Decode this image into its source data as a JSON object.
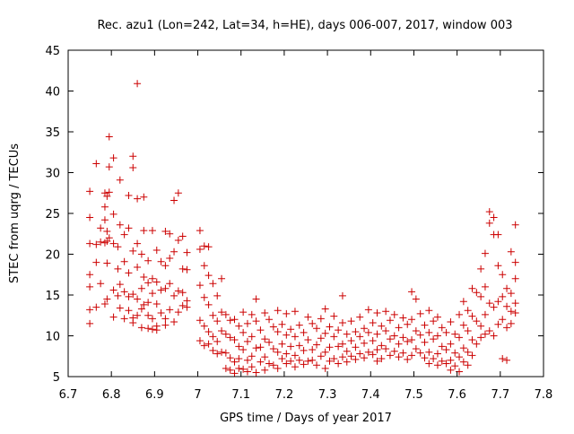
{
  "chart_data": {
    "type": "scatter",
    "title": "Rec. azu1 (Lon=242, Lat=34, h=HE), days 006-007, 2017, window 003",
    "xlabel": "GPS time / Days of year 2017",
    "ylabel": "STEC from uqrg / TECUs",
    "xlim": [
      6.7,
      7.8
    ],
    "ylim": [
      5,
      45
    ],
    "xticks": [
      "6.7",
      "6.8",
      "6.9",
      "7",
      "7.1",
      "7.2",
      "7.3",
      "7.4",
      "7.5",
      "7.6",
      "7.7",
      "7.8"
    ],
    "yticks": [
      "5",
      "10",
      "15",
      "20",
      "25",
      "30",
      "35",
      "40",
      "45"
    ],
    "grid": false,
    "legend": "none",
    "marker": "+",
    "color": "#cc0000",
    "points": [
      [
        6.75,
        27.7
      ],
      [
        6.75,
        24.5
      ],
      [
        6.75,
        21.3
      ],
      [
        6.75,
        17.5
      ],
      [
        6.75,
        16.0
      ],
      [
        6.75,
        13.2
      ],
      [
        6.75,
        11.5
      ],
      [
        6.765,
        31.1
      ],
      [
        6.765,
        21.2
      ],
      [
        6.765,
        19.0
      ],
      [
        6.765,
        13.5
      ],
      [
        6.775,
        23.2
      ],
      [
        6.775,
        21.5
      ],
      [
        6.775,
        16.4
      ],
      [
        6.785,
        27.5
      ],
      [
        6.785,
        25.8
      ],
      [
        6.785,
        24.2
      ],
      [
        6.785,
        21.4
      ],
      [
        6.785,
        13.9
      ],
      [
        6.79,
        27.1
      ],
      [
        6.79,
        22.8
      ],
      [
        6.79,
        21.6
      ],
      [
        6.79,
        18.9
      ],
      [
        6.79,
        14.5
      ],
      [
        6.795,
        34.4
      ],
      [
        6.795,
        30.7
      ],
      [
        6.795,
        27.6
      ],
      [
        6.795,
        22.0
      ],
      [
        6.805,
        31.8
      ],
      [
        6.805,
        24.9
      ],
      [
        6.805,
        21.3
      ],
      [
        6.805,
        15.6
      ],
      [
        6.805,
        12.3
      ],
      [
        6.815,
        20.9
      ],
      [
        6.815,
        18.2
      ],
      [
        6.815,
        14.9
      ],
      [
        6.82,
        29.1
      ],
      [
        6.82,
        23.6
      ],
      [
        6.82,
        16.3
      ],
      [
        6.82,
        13.4
      ],
      [
        6.83,
        22.4
      ],
      [
        6.83,
        19.1
      ],
      [
        6.83,
        15.4
      ],
      [
        6.83,
        12.1
      ],
      [
        6.84,
        27.2
      ],
      [
        6.84,
        23.2
      ],
      [
        6.84,
        17.7
      ],
      [
        6.84,
        14.8
      ],
      [
        6.84,
        13.1
      ],
      [
        6.85,
        32.0
      ],
      [
        6.85,
        30.6
      ],
      [
        6.85,
        20.4
      ],
      [
        6.85,
        15.1
      ],
      [
        6.85,
        12.2
      ],
      [
        6.85,
        11.6
      ],
      [
        6.86,
        40.9
      ],
      [
        6.86,
        26.8
      ],
      [
        6.86,
        21.3
      ],
      [
        6.86,
        18.4
      ],
      [
        6.86,
        14.5
      ],
      [
        6.86,
        12.5
      ],
      [
        6.87,
        20.0
      ],
      [
        6.87,
        15.8
      ],
      [
        6.87,
        13.3
      ],
      [
        6.87,
        11.0
      ],
      [
        6.875,
        27.0
      ],
      [
        6.875,
        22.9
      ],
      [
        6.875,
        17.2
      ],
      [
        6.875,
        13.8
      ],
      [
        6.885,
        19.2
      ],
      [
        6.885,
        16.5
      ],
      [
        6.885,
        14.1
      ],
      [
        6.885,
        12.5
      ],
      [
        6.885,
        10.9
      ],
      [
        6.895,
        22.9
      ],
      [
        6.895,
        17.0
      ],
      [
        6.895,
        15.2
      ],
      [
        6.895,
        12.1
      ],
      [
        6.895,
        10.8
      ],
      [
        6.905,
        20.5
      ],
      [
        6.905,
        16.6
      ],
      [
        6.905,
        13.9
      ],
      [
        6.905,
        11.2
      ],
      [
        6.905,
        10.7
      ],
      [
        6.915,
        19.1
      ],
      [
        6.915,
        15.6
      ],
      [
        6.915,
        12.8
      ],
      [
        6.925,
        22.8
      ],
      [
        6.925,
        18.6
      ],
      [
        6.925,
        15.8
      ],
      [
        6.925,
        12.1
      ],
      [
        6.925,
        11.3
      ],
      [
        6.935,
        22.5
      ],
      [
        6.935,
        19.5
      ],
      [
        6.935,
        16.4
      ],
      [
        6.935,
        13.2
      ],
      [
        6.945,
        26.6
      ],
      [
        6.945,
        20.3
      ],
      [
        6.945,
        14.9
      ],
      [
        6.945,
        11.7
      ],
      [
        6.955,
        27.5
      ],
      [
        6.955,
        21.7
      ],
      [
        6.955,
        15.5
      ],
      [
        6.955,
        12.9
      ],
      [
        6.965,
        22.2
      ],
      [
        6.965,
        18.2
      ],
      [
        6.965,
        15.3
      ],
      [
        6.965,
        13.7
      ],
      [
        6.975,
        20.2
      ],
      [
        6.975,
        18.1
      ],
      [
        6.975,
        14.3
      ],
      [
        6.975,
        13.5
      ],
      [
        7.005,
        22.9
      ],
      [
        7.005,
        20.6
      ],
      [
        7.005,
        16.2
      ],
      [
        7.005,
        11.9
      ],
      [
        7.005,
        9.4
      ],
      [
        7.015,
        21.0
      ],
      [
        7.015,
        18.6
      ],
      [
        7.015,
        14.7
      ],
      [
        7.015,
        11.2
      ],
      [
        7.015,
        8.8
      ],
      [
        7.025,
        20.9
      ],
      [
        7.025,
        17.4
      ],
      [
        7.025,
        13.8
      ],
      [
        7.025,
        10.5
      ],
      [
        7.025,
        9.0
      ],
      [
        7.035,
        16.4
      ],
      [
        7.035,
        12.5
      ],
      [
        7.035,
        9.9
      ],
      [
        7.035,
        8.2
      ],
      [
        7.045,
        14.9
      ],
      [
        7.045,
        11.8
      ],
      [
        7.045,
        9.3
      ],
      [
        7.045,
        7.8
      ],
      [
        7.055,
        17.0
      ],
      [
        7.055,
        12.9
      ],
      [
        7.055,
        10.6
      ],
      [
        7.055,
        8.0
      ],
      [
        7.065,
        12.6
      ],
      [
        7.065,
        10.2
      ],
      [
        7.065,
        7.9
      ],
      [
        7.065,
        6.0
      ],
      [
        7.075,
        11.9
      ],
      [
        7.075,
        9.8
      ],
      [
        7.075,
        7.3
      ],
      [
        7.075,
        5.8
      ],
      [
        7.085,
        12.0
      ],
      [
        7.085,
        9.5
      ],
      [
        7.085,
        6.8
      ],
      [
        7.085,
        5.4
      ],
      [
        7.095,
        11.2
      ],
      [
        7.095,
        8.7
      ],
      [
        7.095,
        7.2
      ],
      [
        7.095,
        6.0
      ],
      [
        7.105,
        12.9
      ],
      [
        7.105,
        10.4
      ],
      [
        7.105,
        8.3
      ],
      [
        7.105,
        5.9
      ],
      [
        7.115,
        11.5
      ],
      [
        7.115,
        9.3
      ],
      [
        7.115,
        7.0
      ],
      [
        7.115,
        5.6
      ],
      [
        7.125,
        12.6
      ],
      [
        7.125,
        9.9
      ],
      [
        7.125,
        7.5
      ],
      [
        7.125,
        6.2
      ],
      [
        7.135,
        14.5
      ],
      [
        7.135,
        11.8
      ],
      [
        7.135,
        8.5
      ],
      [
        7.135,
        5.5
      ],
      [
        7.145,
        10.7
      ],
      [
        7.145,
        8.6
      ],
      [
        7.145,
        6.8
      ],
      [
        7.155,
        12.8
      ],
      [
        7.155,
        9.6
      ],
      [
        7.155,
        7.4
      ],
      [
        7.155,
        5.8
      ],
      [
        7.165,
        12.0
      ],
      [
        7.165,
        9.2
      ],
      [
        7.165,
        6.6
      ],
      [
        7.175,
        11.1
      ],
      [
        7.175,
        8.4
      ],
      [
        7.175,
        6.4
      ],
      [
        7.185,
        13.1
      ],
      [
        7.185,
        10.5
      ],
      [
        7.185,
        8.0
      ],
      [
        7.185,
        6.0
      ],
      [
        7.195,
        11.4
      ],
      [
        7.195,
        9.0
      ],
      [
        7.195,
        7.2
      ],
      [
        7.205,
        12.7
      ],
      [
        7.205,
        10.1
      ],
      [
        7.205,
        7.8
      ],
      [
        7.205,
        6.6
      ],
      [
        7.215,
        10.8
      ],
      [
        7.215,
        8.7
      ],
      [
        7.215,
        6.9
      ],
      [
        7.225,
        13.0
      ],
      [
        7.225,
        9.9
      ],
      [
        7.225,
        7.6
      ],
      [
        7.225,
        6.2
      ],
      [
        7.235,
        11.3
      ],
      [
        7.235,
        8.8
      ],
      [
        7.235,
        7.0
      ],
      [
        7.245,
        10.4
      ],
      [
        7.245,
        8.2
      ],
      [
        7.245,
        6.5
      ],
      [
        7.255,
        12.3
      ],
      [
        7.255,
        9.5
      ],
      [
        7.255,
        6.9
      ],
      [
        7.265,
        11.5
      ],
      [
        7.265,
        8.3
      ],
      [
        7.265,
        7.0
      ],
      [
        7.275,
        10.9
      ],
      [
        7.275,
        8.9
      ],
      [
        7.275,
        6.4
      ],
      [
        7.285,
        12.1
      ],
      [
        7.285,
        9.7
      ],
      [
        7.285,
        7.5
      ],
      [
        7.295,
        13.3
      ],
      [
        7.295,
        10.3
      ],
      [
        7.295,
        8.0
      ],
      [
        7.295,
        6.0
      ],
      [
        7.305,
        11.1
      ],
      [
        7.305,
        8.6
      ],
      [
        7.305,
        6.9
      ],
      [
        7.315,
        12.4
      ],
      [
        7.315,
        9.9
      ],
      [
        7.315,
        7.2
      ],
      [
        7.325,
        10.7
      ],
      [
        7.325,
        8.7
      ],
      [
        7.325,
        6.6
      ],
      [
        7.335,
        14.9
      ],
      [
        7.335,
        11.6
      ],
      [
        7.335,
        9.0
      ],
      [
        7.335,
        7.4
      ],
      [
        7.345,
        10.2
      ],
      [
        7.345,
        8.1
      ],
      [
        7.345,
        6.8
      ],
      [
        7.355,
        11.8
      ],
      [
        7.355,
        9.4
      ],
      [
        7.355,
        7.5
      ],
      [
        7.365,
        10.5
      ],
      [
        7.365,
        8.6
      ],
      [
        7.365,
        7.1
      ],
      [
        7.375,
        12.3
      ],
      [
        7.375,
        9.9
      ],
      [
        7.375,
        7.8
      ],
      [
        7.385,
        10.9
      ],
      [
        7.385,
        9.1
      ],
      [
        7.385,
        7.3
      ],
      [
        7.395,
        13.2
      ],
      [
        7.395,
        10.4
      ],
      [
        7.395,
        8.0
      ],
      [
        7.405,
        11.6
      ],
      [
        7.405,
        9.4
      ],
      [
        7.405,
        7.7
      ],
      [
        7.415,
        12.8
      ],
      [
        7.415,
        10.2
      ],
      [
        7.415,
        8.3
      ],
      [
        7.415,
        6.9
      ],
      [
        7.425,
        11.2
      ],
      [
        7.425,
        8.8
      ],
      [
        7.425,
        7.2
      ],
      [
        7.435,
        13.0
      ],
      [
        7.435,
        10.6
      ],
      [
        7.435,
        8.4
      ],
      [
        7.445,
        11.9
      ],
      [
        7.445,
        9.6
      ],
      [
        7.445,
        7.6
      ],
      [
        7.455,
        12.6
      ],
      [
        7.455,
        10.0
      ],
      [
        7.455,
        8.1
      ],
      [
        7.465,
        11.0
      ],
      [
        7.465,
        9.0
      ],
      [
        7.465,
        7.4
      ],
      [
        7.475,
        12.2
      ],
      [
        7.475,
        9.8
      ],
      [
        7.475,
        7.9
      ],
      [
        7.485,
        11.4
      ],
      [
        7.485,
        9.3
      ],
      [
        7.485,
        7.1
      ],
      [
        7.495,
        15.4
      ],
      [
        7.495,
        12.0
      ],
      [
        7.495,
        9.5
      ],
      [
        7.495,
        7.6
      ],
      [
        7.505,
        14.5
      ],
      [
        7.505,
        10.6
      ],
      [
        7.505,
        8.4
      ],
      [
        7.515,
        12.7
      ],
      [
        7.515,
        10.1
      ],
      [
        7.515,
        7.9
      ],
      [
        7.525,
        11.3
      ],
      [
        7.525,
        9.2
      ],
      [
        7.525,
        7.3
      ],
      [
        7.535,
        13.1
      ],
      [
        7.535,
        10.4
      ],
      [
        7.535,
        8.0
      ],
      [
        7.535,
        6.6
      ],
      [
        7.545,
        11.8
      ],
      [
        7.545,
        9.6
      ],
      [
        7.545,
        7.2
      ],
      [
        7.555,
        12.3
      ],
      [
        7.555,
        10.0
      ],
      [
        7.555,
        7.8
      ],
      [
        7.555,
        6.4
      ],
      [
        7.565,
        11.0
      ],
      [
        7.565,
        8.7
      ],
      [
        7.565,
        6.9
      ],
      [
        7.575,
        10.4
      ],
      [
        7.575,
        8.3
      ],
      [
        7.575,
        6.6
      ],
      [
        7.585,
        11.7
      ],
      [
        7.585,
        9.0
      ],
      [
        7.585,
        7.0
      ],
      [
        7.585,
        5.8
      ],
      [
        7.595,
        10.2
      ],
      [
        7.595,
        7.9
      ],
      [
        7.595,
        6.3
      ],
      [
        7.605,
        12.6
      ],
      [
        7.605,
        9.8
      ],
      [
        7.605,
        7.4
      ],
      [
        7.605,
        5.6
      ],
      [
        7.615,
        14.2
      ],
      [
        7.615,
        11.3
      ],
      [
        7.615,
        8.5
      ],
      [
        7.615,
        6.8
      ],
      [
        7.625,
        13.1
      ],
      [
        7.625,
        10.6
      ],
      [
        7.625,
        8.0
      ],
      [
        7.625,
        6.4
      ],
      [
        7.635,
        15.8
      ],
      [
        7.635,
        12.4
      ],
      [
        7.635,
        9.5
      ],
      [
        7.635,
        7.6
      ],
      [
        7.645,
        15.3
      ],
      [
        7.645,
        11.8
      ],
      [
        7.645,
        9.0
      ],
      [
        7.655,
        18.2
      ],
      [
        7.655,
        14.8
      ],
      [
        7.655,
        11.2
      ],
      [
        7.655,
        9.8
      ],
      [
        7.665,
        20.1
      ],
      [
        7.665,
        16.0
      ],
      [
        7.665,
        12.6
      ],
      [
        7.665,
        10.2
      ],
      [
        7.675,
        25.2
      ],
      [
        7.675,
        23.8
      ],
      [
        7.675,
        14.0
      ],
      [
        7.675,
        10.6
      ],
      [
        7.685,
        24.5
      ],
      [
        7.685,
        22.4
      ],
      [
        7.685,
        13.5
      ],
      [
        7.685,
        10.0
      ],
      [
        7.695,
        22.4
      ],
      [
        7.695,
        18.6
      ],
      [
        7.695,
        14.2
      ],
      [
        7.695,
        11.4
      ],
      [
        7.705,
        17.5
      ],
      [
        7.705,
        14.8
      ],
      [
        7.705,
        12.0
      ],
      [
        7.705,
        7.2
      ],
      [
        7.715,
        15.8
      ],
      [
        7.715,
        13.6
      ],
      [
        7.715,
        11.0
      ],
      [
        7.715,
        7.0
      ],
      [
        7.725,
        20.3
      ],
      [
        7.725,
        15.2
      ],
      [
        7.725,
        13.0
      ],
      [
        7.725,
        11.5
      ],
      [
        7.735,
        23.6
      ],
      [
        7.735,
        19.0
      ],
      [
        7.735,
        17.0
      ],
      [
        7.735,
        14.0
      ],
      [
        7.735,
        12.8
      ]
    ]
  }
}
